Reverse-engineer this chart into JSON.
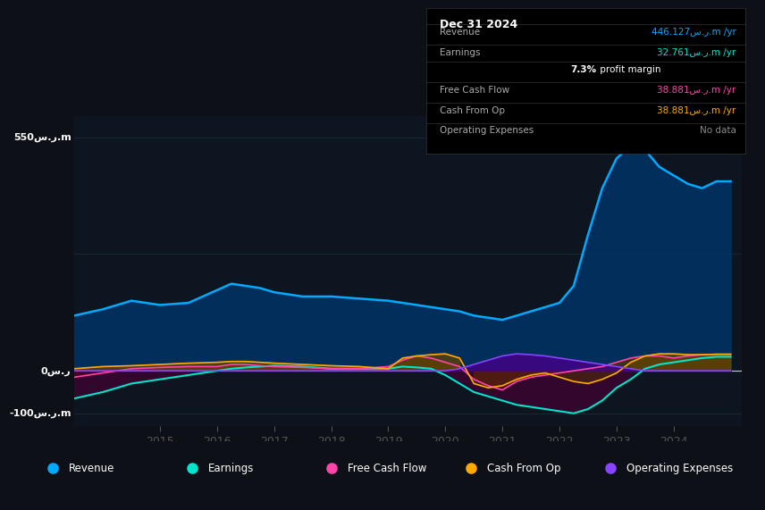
{
  "bg_color": "#0d1117",
  "plot_bg_color": "#0d1520",
  "grid_color": "#1e2a3a",
  "zero_line_color": "#cccccc",
  "revenue_color": "#00aaff",
  "revenue_fill": "#003366",
  "earnings_color": "#00e5cc",
  "earnings_fill": "#004444",
  "fcf_color": "#ff44aa",
  "fcf_fill": "#660033",
  "cashop_color": "#ffaa00",
  "cashop_fill": "#664400",
  "opex_color": "#8844ff",
  "opex_fill": "#440088",
  "years": [
    2013.5,
    2014.0,
    2014.5,
    2015.0,
    2015.5,
    2016.0,
    2016.25,
    2016.5,
    2016.75,
    2017.0,
    2017.5,
    2018.0,
    2018.5,
    2019.0,
    2019.25,
    2019.5,
    2019.75,
    2020.0,
    2020.25,
    2020.5,
    2020.75,
    2021.0,
    2021.25,
    2021.5,
    2021.75,
    2022.0,
    2022.25,
    2022.5,
    2022.75,
    2023.0,
    2023.25,
    2023.5,
    2023.75,
    2024.0,
    2024.25,
    2024.5,
    2024.75,
    2025.0
  ],
  "revenue": [
    130,
    145,
    165,
    155,
    160,
    190,
    205,
    200,
    195,
    185,
    175,
    175,
    170,
    165,
    160,
    155,
    150,
    145,
    140,
    130,
    125,
    120,
    130,
    140,
    150,
    160,
    200,
    320,
    430,
    500,
    530,
    520,
    480,
    460,
    440,
    430,
    446,
    446
  ],
  "earnings": [
    -65,
    -50,
    -30,
    -20,
    -10,
    0,
    5,
    8,
    10,
    12,
    10,
    5,
    5,
    5,
    10,
    8,
    5,
    -10,
    -30,
    -50,
    -60,
    -70,
    -80,
    -85,
    -90,
    -95,
    -100,
    -90,
    -70,
    -40,
    -20,
    5,
    15,
    20,
    25,
    30,
    33,
    33
  ],
  "fcf": [
    -15,
    -5,
    5,
    8,
    10,
    10,
    15,
    15,
    12,
    10,
    8,
    5,
    5,
    10,
    25,
    35,
    30,
    20,
    10,
    -20,
    -35,
    -45,
    -25,
    -15,
    -10,
    -5,
    0,
    5,
    10,
    20,
    30,
    35,
    35,
    30,
    35,
    38,
    39,
    39
  ],
  "cashop": [
    5,
    10,
    12,
    15,
    18,
    20,
    22,
    22,
    20,
    18,
    15,
    12,
    10,
    5,
    30,
    35,
    38,
    40,
    30,
    -30,
    -40,
    -35,
    -20,
    -10,
    -5,
    -15,
    -25,
    -30,
    -20,
    -5,
    20,
    35,
    40,
    40,
    38,
    38,
    39,
    39
  ],
  "opex": [
    0,
    0,
    0,
    0,
    0,
    0,
    0,
    0,
    0,
    0,
    0,
    0,
    0,
    0,
    0,
    0,
    0,
    0,
    5,
    15,
    25,
    35,
    40,
    38,
    35,
    30,
    25,
    20,
    15,
    10,
    5,
    0,
    0,
    0,
    0,
    0,
    0,
    0
  ],
  "ylim_min": -130,
  "ylim_max": 600,
  "xlim_min": 2013.5,
  "xlim_max": 2025.2,
  "xticks": [
    2015,
    2016,
    2017,
    2018,
    2019,
    2020,
    2021,
    2022,
    2023,
    2024
  ],
  "yticks_labels": [
    "550س.ر.m",
    "0س.ر",
    "-100س.ر.m"
  ],
  "yticks_values": [
    550,
    0,
    -100
  ],
  "gridlines": [
    550,
    275,
    0,
    -100
  ],
  "info_box": {
    "title": "Dec 31 2024",
    "rows": [
      {
        "label": "Revenue",
        "value": "446.127س.ر.m /yr",
        "value_color": "#00aaff",
        "bold_part": null
      },
      {
        "label": "Earnings",
        "value": "32.761س.ر.m /yr",
        "value_color": "#00e5cc",
        "bold_part": null
      },
      {
        "label": "",
        "value": "7.3% profit margin",
        "value_color": "#ffffff",
        "bold_part": "7.3%"
      },
      {
        "label": "Free Cash Flow",
        "value": "38.881س.ر.m /yr",
        "value_color": "#ff44aa",
        "bold_part": null
      },
      {
        "label": "Cash From Op",
        "value": "38.881س.ر.m /yr",
        "value_color": "#ffaa00",
        "bold_part": null
      },
      {
        "label": "Operating Expenses",
        "value": "No data",
        "value_color": "#888888",
        "bold_part": null
      }
    ]
  },
  "legend_items": [
    {
      "label": "Revenue",
      "color": "#00aaff"
    },
    {
      "label": "Earnings",
      "color": "#00e5cc"
    },
    {
      "label": "Free Cash Flow",
      "color": "#ff44aa"
    },
    {
      "label": "Cash From Op",
      "color": "#ffaa00"
    },
    {
      "label": "Operating Expenses",
      "color": "#8844ff"
    }
  ]
}
